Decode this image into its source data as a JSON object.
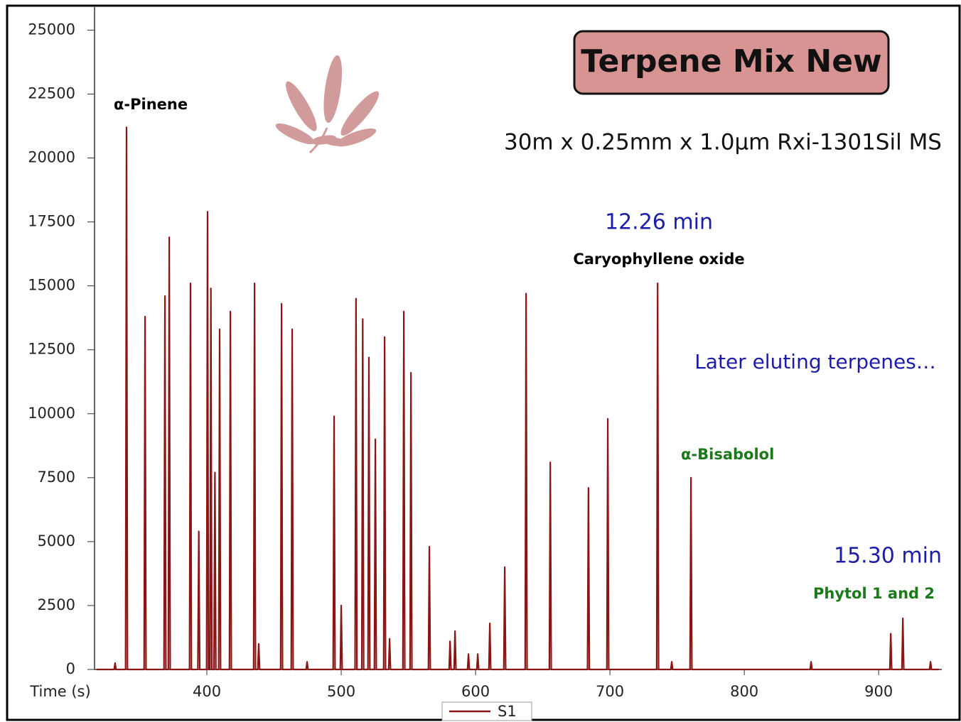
{
  "chart_data": {
    "type": "line",
    "title": "Terpene Mix New",
    "subtitle": "30m x 0.25mm x 1.0µm Rxi-1301Sil MS",
    "x_label": "Time (s)",
    "annotations": [
      "α-Pinene",
      "12.26 min",
      "Caryophyllene oxide",
      "Later eluting terpenes…",
      "α-Bisabolol",
      "15.30 min",
      "Phytol 1 and 2"
    ],
    "xlim": [
      316.4,
      947
    ],
    "xticks": [
      400,
      500,
      600,
      700,
      800,
      900
    ],
    "ylim": [
      0,
      25900
    ],
    "yticks": [
      0,
      2500,
      5000,
      7500,
      10000,
      12500,
      15000,
      17500,
      20000,
      22500,
      25000
    ],
    "grid": false,
    "x": [
      318,
      331.0,
      331.7,
      332.4,
      339.5,
      340.2,
      340.9,
      353.3,
      354,
      354.7,
      368.1,
      368.8,
      369.5,
      371.3,
      372,
      372.7,
      387.1,
      387.8,
      388.5,
      393.3,
      394,
      394.7,
      399.8,
      400.5,
      401.2,
      402.3,
      403,
      403.7,
      405.3,
      406,
      406.7,
      408.8,
      409.5,
      410.2,
      416.8,
      417.5,
      418.2,
      434.8,
      435.5,
      436.2,
      437.9,
      438.6,
      439.3,
      454.9,
      455.6,
      456.3,
      462.8,
      463.5,
      464.2,
      473.9,
      474.6,
      475.3,
      494.0,
      494.7,
      495.4,
      499.3,
      500,
      500.7,
      510.3,
      511,
      511.7,
      515.3,
      516,
      516.7,
      519.9,
      520.6,
      521.3,
      524.7,
      525.4,
      526.1,
      531.6,
      532.3,
      533.0,
      535.3,
      536,
      536.7,
      545.9,
      546.6,
      547.3,
      551.2,
      551.9,
      552.6,
      564.9,
      565.6,
      566.3,
      580.3,
      581,
      581.7,
      584.0,
      584.7,
      585.4,
      594.0,
      594.7,
      595.4,
      600.9,
      601.6,
      602.3,
      609.9,
      610.6,
      611.3,
      621.0,
      621.7,
      622.4,
      636.9,
      637.6,
      638.3,
      654.9,
      655.6,
      656.3,
      683.3,
      684,
      684.7,
      697.7,
      698.4,
      699.1,
      734.8,
      735.5,
      736.2,
      745.3,
      746,
      746.7,
      759.6,
      760.3,
      761.0,
      849.0,
      849.7,
      850.4,
      908.3,
      909,
      909.7,
      917.3,
      918,
      918.7,
      937.9,
      938.6,
      939.3,
      945
    ],
    "series": [
      {
        "name": "S1",
        "color": "#8b1414",
        "values": [
          0,
          0,
          250,
          0,
          0,
          21200,
          0,
          0,
          13800,
          0,
          0,
          14600,
          0,
          0,
          16900,
          0,
          0,
          15100,
          0,
          0,
          5400,
          0,
          0,
          17900,
          0,
          0,
          14900,
          0,
          0,
          7700,
          0,
          0,
          13300,
          0,
          0,
          14000,
          0,
          0,
          15100,
          0,
          0,
          1000,
          0,
          0,
          14300,
          0,
          0,
          13300,
          0,
          0,
          300,
          0,
          0,
          9900,
          0,
          0,
          2500,
          0,
          0,
          14500,
          0,
          0,
          13700,
          0,
          0,
          12200,
          0,
          0,
          9000,
          0,
          0,
          13000,
          0,
          0,
          1200,
          0,
          0,
          14000,
          0,
          0,
          11600,
          0,
          0,
          4800,
          0,
          0,
          1100,
          0,
          0,
          1500,
          0,
          0,
          600,
          0,
          0,
          600,
          0,
          0,
          1800,
          0,
          0,
          4000,
          0,
          0,
          14700,
          0,
          0,
          8100,
          0,
          0,
          7100,
          0,
          0,
          9800,
          0,
          0,
          15100,
          0,
          0,
          300,
          0,
          0,
          7500,
          0,
          0,
          300,
          0,
          0,
          1400,
          0,
          0,
          2000,
          0,
          0,
          300,
          0,
          0
        ]
      }
    ]
  }
}
